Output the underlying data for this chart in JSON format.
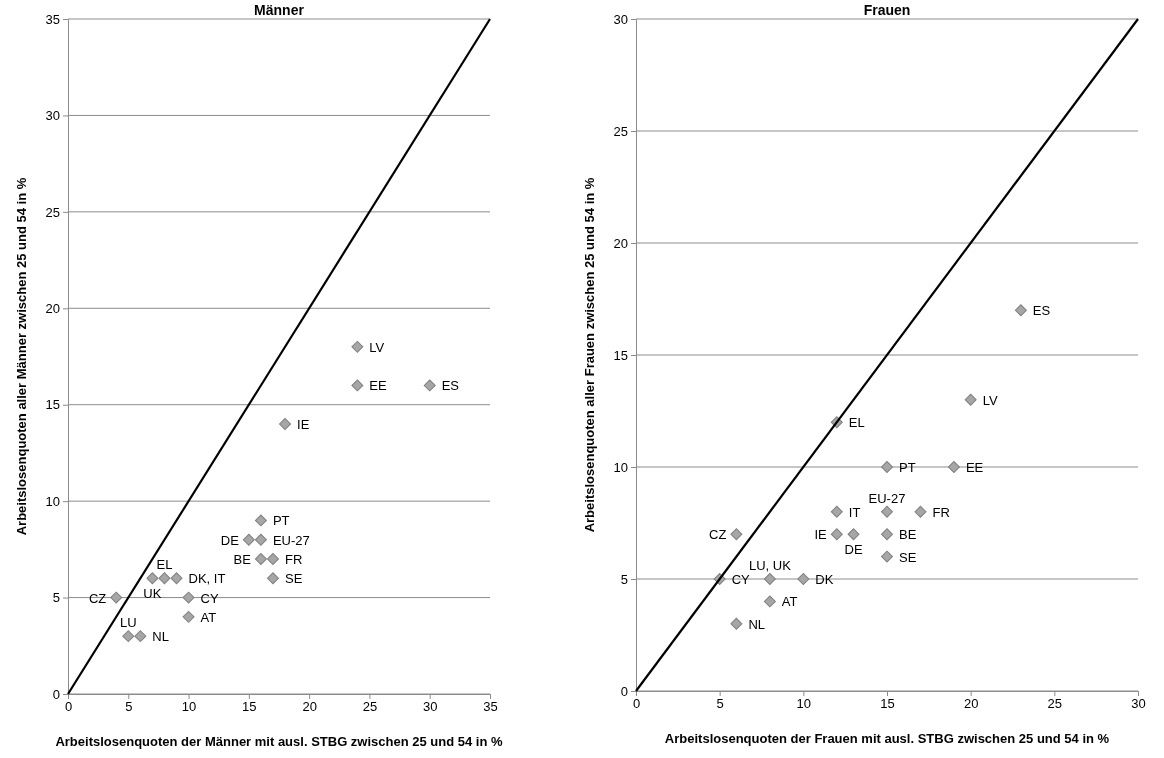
{
  "chart_data": [
    {
      "type": "scatter",
      "title": "Männer",
      "xlabel": "Arbeitslosenquoten der Männer mit ausl. STBG zwischen 25 und 54 in %",
      "ylabel": "Arbeitslosenquoten aller Männer zwischen 25 und 54 in %",
      "xlim": [
        0,
        35
      ],
      "ylim": [
        0,
        35
      ],
      "xticks": [
        0,
        5,
        10,
        15,
        20,
        25,
        30,
        35
      ],
      "yticks": [
        0,
        5,
        10,
        15,
        20,
        25,
        30,
        35
      ],
      "grid": "y",
      "series": [
        {
          "color": "#a6a6a6",
          "marker": "diamond",
          "x": [
            4,
            7,
            8,
            9,
            10,
            10,
            5,
            6,
            16,
            15,
            16,
            16,
            17,
            17,
            18,
            24,
            24,
            30
          ],
          "values": [
            5,
            6,
            6,
            6,
            5,
            4,
            3,
            3,
            9,
            8,
            8,
            7,
            7,
            6,
            14,
            18,
            16,
            16
          ]
        },
        {
          "type": "line",
          "color": "#000000",
          "x": [
            0,
            35
          ],
          "values": [
            0,
            35
          ]
        }
      ],
      "annotations": [
        {
          "text": "CZ",
          "x": 4,
          "y": 5
        },
        {
          "text": "UK",
          "x": 7,
          "y": 6
        },
        {
          "text": "EL",
          "x": 8,
          "y": 6
        },
        {
          "text": "DK, IT",
          "x": 9,
          "y": 6
        },
        {
          "text": "CY",
          "x": 10,
          "y": 5
        },
        {
          "text": "AT",
          "x": 10,
          "y": 4
        },
        {
          "text": "LU",
          "x": 5,
          "y": 3
        },
        {
          "text": "NL",
          "x": 6,
          "y": 3
        },
        {
          "text": "PT",
          "x": 16,
          "y": 9
        },
        {
          "text": "DE",
          "x": 15,
          "y": 8
        },
        {
          "text": "EU-27",
          "x": 16,
          "y": 8
        },
        {
          "text": "BE",
          "x": 16,
          "y": 7
        },
        {
          "text": "FR",
          "x": 17,
          "y": 7
        },
        {
          "text": "SE",
          "x": 17,
          "y": 6
        },
        {
          "text": "IE",
          "x": 18,
          "y": 14
        },
        {
          "text": "LV",
          "x": 24,
          "y": 18
        },
        {
          "text": "EE",
          "x": 24,
          "y": 16
        },
        {
          "text": "ES",
          "x": 30,
          "y": 16
        }
      ]
    },
    {
      "type": "scatter",
      "title": "Frauen",
      "xlabel": "Arbeitslosenquoten der Frauen mit ausl. STBG zwischen 25 und 54 in %",
      "ylabel": "Arbeitslosenquoten aller Frauen zwischen 25 und 54 in %",
      "xlim": [
        0,
        30
      ],
      "ylim": [
        0,
        30
      ],
      "xticks": [
        0,
        5,
        10,
        15,
        20,
        25,
        30
      ],
      "yticks": [
        0,
        5,
        10,
        15,
        20,
        25,
        30
      ],
      "grid": "y",
      "series": [
        {
          "color": "#a6a6a6",
          "marker": "diamond",
          "x": [
            6,
            5,
            8,
            10,
            8,
            6,
            12,
            12,
            12,
            13,
            15,
            15,
            15,
            15,
            17,
            19,
            20,
            23
          ],
          "values": [
            7,
            5,
            5,
            5,
            4,
            3,
            12,
            8,
            7,
            7,
            8,
            7,
            6,
            10,
            8,
            10,
            13,
            17
          ]
        },
        {
          "type": "line",
          "color": "#000000",
          "x": [
            0,
            30
          ],
          "values": [
            0,
            30
          ]
        }
      ],
      "annotations": [
        {
          "text": "CZ",
          "x": 6,
          "y": 7
        },
        {
          "text": "CY",
          "x": 5,
          "y": 5
        },
        {
          "text": "LU, UK",
          "x": 8,
          "y": 5
        },
        {
          "text": "DK",
          "x": 10,
          "y": 5
        },
        {
          "text": "AT",
          "x": 8,
          "y": 4
        },
        {
          "text": "NL",
          "x": 6,
          "y": 3
        },
        {
          "text": "EL",
          "x": 12,
          "y": 12
        },
        {
          "text": "IT",
          "x": 12,
          "y": 8
        },
        {
          "text": "IE",
          "x": 12,
          "y": 7
        },
        {
          "text": "DE",
          "x": 13,
          "y": 7
        },
        {
          "text": "EU-27",
          "x": 15,
          "y": 8
        },
        {
          "text": "BE",
          "x": 15,
          "y": 7
        },
        {
          "text": "SE",
          "x": 15,
          "y": 6
        },
        {
          "text": "PT",
          "x": 15,
          "y": 10
        },
        {
          "text": "FR",
          "x": 17,
          "y": 8
        },
        {
          "text": "EE",
          "x": 19,
          "y": 10
        },
        {
          "text": "LV",
          "x": 20,
          "y": 13
        },
        {
          "text": "ES",
          "x": 23,
          "y": 17
        }
      ]
    }
  ]
}
